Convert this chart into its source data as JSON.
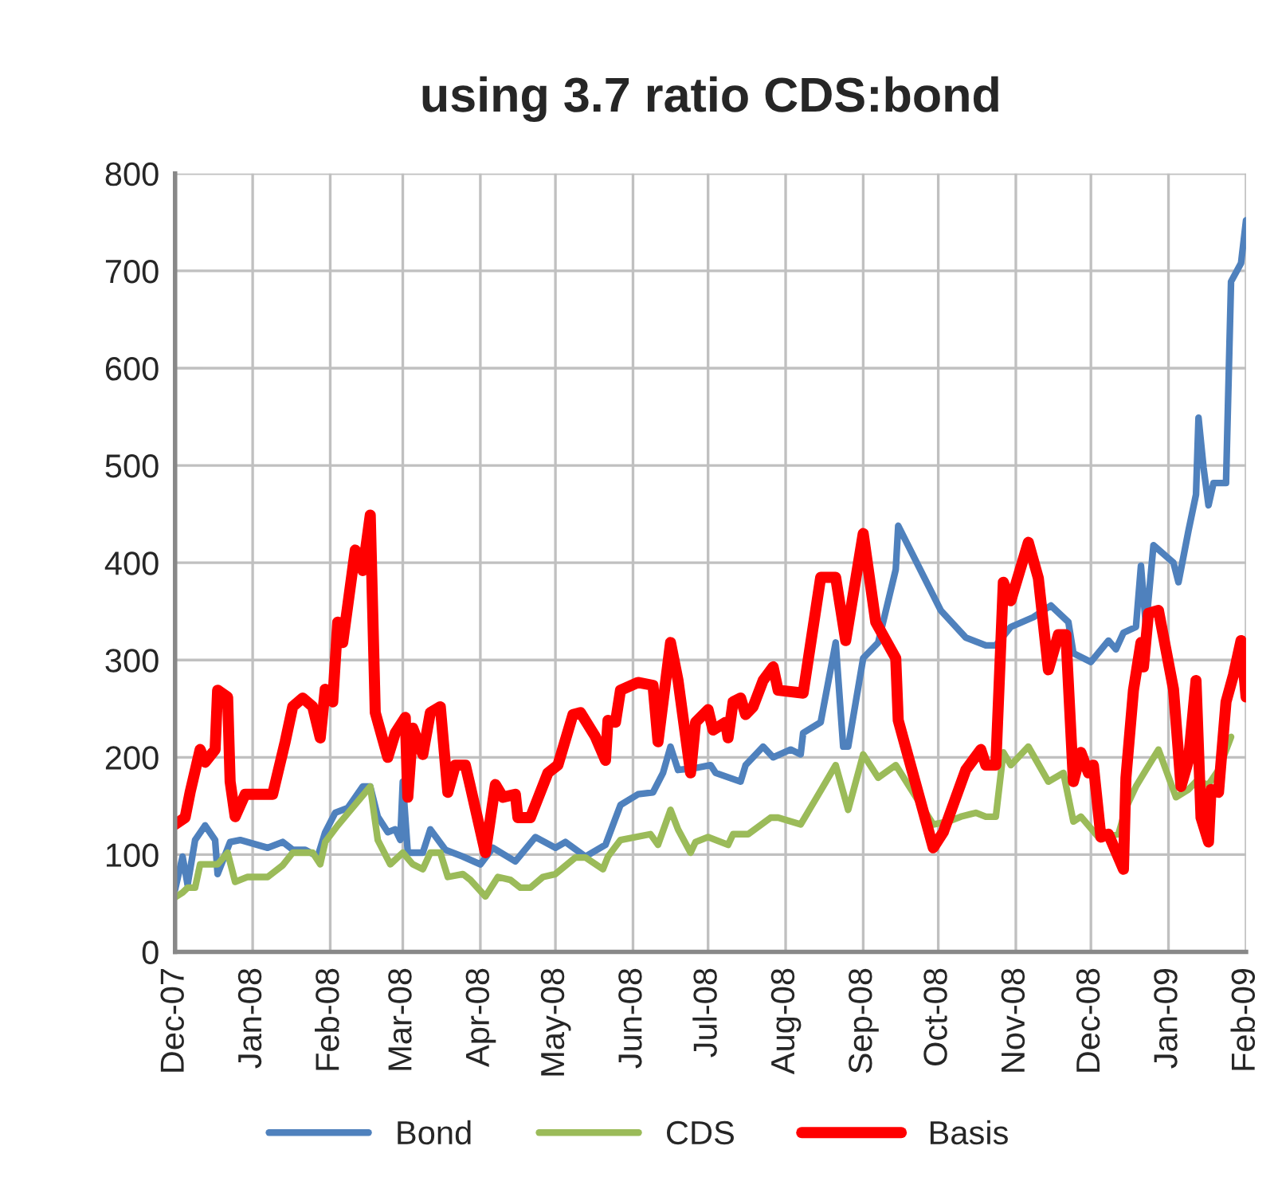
{
  "chart_data": {
    "type": "line",
    "title": "using 3.7 ratio CDS:bond",
    "series": [
      {
        "name": "Bond",
        "color": "#4f81bd",
        "x": [
          "2007-12-01",
          "2007-12-04",
          "2007-12-06",
          "2007-12-09",
          "2007-12-13",
          "2007-12-17",
          "2007-12-18",
          "2007-12-23",
          "2007-12-27",
          "2008-01-07",
          "2008-01-13",
          "2008-01-17",
          "2008-01-22",
          "2008-01-27",
          "2008-01-30",
          "2008-02-03",
          "2008-02-08",
          "2008-02-14",
          "2008-02-17",
          "2008-02-20",
          "2008-02-24",
          "2008-02-27",
          "2008-02-29",
          "2008-03-01",
          "2008-03-03",
          "2008-03-09",
          "2008-03-12",
          "2008-03-18",
          "2008-03-25",
          "2008-04-01",
          "2008-04-06",
          "2008-04-15",
          "2008-04-23",
          "2008-05-01",
          "2008-05-05",
          "2008-05-13",
          "2008-05-21",
          "2008-05-27",
          "2008-06-03",
          "2008-06-09",
          "2008-06-13",
          "2008-06-16",
          "2008-06-19",
          "2008-06-26",
          "2008-07-02",
          "2008-07-04",
          "2008-07-14",
          "2008-07-16",
          "2008-07-23",
          "2008-07-27",
          "2008-08-03",
          "2008-08-07",
          "2008-08-08",
          "2008-08-15",
          "2008-08-21",
          "2008-08-24",
          "2008-08-26",
          "2008-09-01",
          "2008-09-07",
          "2008-09-14",
          "2008-09-15",
          "2008-10-02",
          "2008-10-12",
          "2008-10-20",
          "2008-10-24",
          "2008-10-30",
          "2008-11-08",
          "2008-11-15",
          "2008-11-22",
          "2008-11-24",
          "2008-12-01",
          "2008-12-08",
          "2008-12-11",
          "2008-12-14",
          "2008-12-19",
          "2008-12-21",
          "2008-12-23",
          "2008-12-26",
          "2009-01-03",
          "2009-01-05",
          "2009-01-09",
          "2009-01-12",
          "2009-01-13",
          "2009-01-15",
          "2009-01-17",
          "2009-01-19",
          "2009-01-24",
          "2009-01-26",
          "2009-01-30",
          "2009-02-01"
        ],
        "values": [
          64,
          98,
          69,
          115,
          130,
          115,
          80,
          113,
          115,
          107,
          113,
          105,
          105,
          98,
          123,
          143,
          148,
          170,
          170,
          139,
          123,
          126,
          115,
          175,
          102,
          102,
          126,
          105,
          98,
          90,
          107,
          93,
          118,
          107,
          113,
          98,
          110,
          151,
          162,
          164,
          184,
          211,
          187,
          189,
          192,
          184,
          175,
          192,
          211,
          200,
          208,
          203,
          225,
          236,
          318,
          211,
          211,
          302,
          318,
          393,
          438,
          351,
          323,
          315,
          315,
          334,
          344,
          356,
          339,
          307,
          298,
          320,
          311,
          328,
          334,
          397,
          334,
          418,
          400,
          380,
          433,
          470,
          549,
          498,
          459,
          482,
          482,
          689,
          708,
          752
        ]
      },
      {
        "name": "CDS",
        "color": "#9bbb59",
        "x": [
          "2007-12-01",
          "2007-12-04",
          "2007-12-06",
          "2007-12-09",
          "2007-12-11",
          "2007-12-18",
          "2007-12-22",
          "2007-12-25",
          "2007-12-30",
          "2008-01-07",
          "2008-01-13",
          "2008-01-17",
          "2008-01-25",
          "2008-01-28",
          "2008-01-30",
          "2008-02-04",
          "2008-02-17",
          "2008-02-20",
          "2008-02-25",
          "2008-03-01",
          "2008-03-05",
          "2008-03-09",
          "2008-03-12",
          "2008-03-16",
          "2008-03-19",
          "2008-03-25",
          "2008-03-28",
          "2008-04-03",
          "2008-04-08",
          "2008-04-13",
          "2008-04-17",
          "2008-04-21",
          "2008-04-26",
          "2008-05-01",
          "2008-05-09",
          "2008-05-13",
          "2008-05-20",
          "2008-05-22",
          "2008-05-27",
          "2008-06-08",
          "2008-06-11",
          "2008-06-16",
          "2008-06-19",
          "2008-06-24",
          "2008-06-26",
          "2008-07-01",
          "2008-07-09",
          "2008-07-11",
          "2008-07-17",
          "2008-07-26",
          "2008-07-29",
          "2008-08-07",
          "2008-08-16",
          "2008-08-21",
          "2008-08-26",
          "2008-09-01",
          "2008-09-07",
          "2008-09-14",
          "2008-09-29",
          "2008-10-05",
          "2008-10-10",
          "2008-10-16",
          "2008-10-20",
          "2008-10-24",
          "2008-10-27",
          "2008-10-30",
          "2008-11-06",
          "2008-11-14",
          "2008-11-20",
          "2008-11-24",
          "2008-11-27",
          "2008-12-04",
          "2008-12-12",
          "2008-12-15",
          "2008-12-19",
          "2008-12-23",
          "2008-12-28",
          "2009-01-04",
          "2009-01-09",
          "2009-01-12",
          "2009-01-17",
          "2009-01-21",
          "2009-01-26"
        ],
        "values": [
          56,
          61,
          66,
          66,
          90,
          90,
          102,
          72,
          77,
          77,
          89,
          102,
          102,
          90,
          113,
          130,
          170,
          115,
          90,
          102,
          90,
          85,
          102,
          102,
          77,
          80,
          74,
          57,
          77,
          74,
          66,
          66,
          77,
          80,
          97,
          97,
          85,
          98,
          115,
          121,
          110,
          146,
          126,
          102,
          113,
          118,
          110,
          121,
          121,
          138,
          138,
          131,
          170,
          192,
          146,
          203,
          179,
          192,
          131,
          134,
          139,
          143,
          139,
          139,
          205,
          192,
          211,
          175,
          184,
          134,
          139,
          118,
          121,
          148,
          170,
          187,
          208,
          159,
          167,
          175,
          172,
          187,
          221
        ]
      },
      {
        "name": "Basis",
        "color": "#ff0000",
        "x": [
          "2007-12-01",
          "2007-12-05",
          "2007-12-07",
          "2007-12-11",
          "2007-12-13",
          "2007-12-17",
          "2007-12-18",
          "2007-12-22",
          "2007-12-23",
          "2007-12-25",
          "2007-12-29",
          "2008-01-09",
          "2008-01-14",
          "2008-01-17",
          "2008-01-21",
          "2008-01-25",
          "2008-01-28",
          "2008-01-30",
          "2008-02-02",
          "2008-02-04",
          "2008-02-06",
          "2008-02-11",
          "2008-02-14",
          "2008-02-17",
          "2008-02-19",
          "2008-02-24",
          "2008-02-27",
          "2008-03-02",
          "2008-03-03",
          "2008-03-05",
          "2008-03-09",
          "2008-03-12",
          "2008-03-16",
          "2008-03-19",
          "2008-03-22",
          "2008-03-26",
          "2008-03-28",
          "2008-04-03",
          "2008-04-07",
          "2008-04-10",
          "2008-04-15",
          "2008-04-16",
          "2008-04-21",
          "2008-04-28",
          "2008-05-02",
          "2008-05-08",
          "2008-05-11",
          "2008-05-17",
          "2008-05-21",
          "2008-05-22",
          "2008-05-25",
          "2008-05-27",
          "2008-06-03",
          "2008-06-09",
          "2008-06-11",
          "2008-06-16",
          "2008-06-19",
          "2008-06-24",
          "2008-06-26",
          "2008-07-01",
          "2008-07-03",
          "2008-07-08",
          "2008-07-09",
          "2008-07-11",
          "2008-07-14",
          "2008-07-16",
          "2008-07-19",
          "2008-07-23",
          "2008-07-27",
          "2008-07-29",
          "2008-08-08",
          "2008-08-15",
          "2008-08-21",
          "2008-08-25",
          "2008-09-01",
          "2008-09-06",
          "2008-09-14",
          "2008-09-15",
          "2008-09-29",
          "2008-10-03",
          "2008-10-12",
          "2008-10-18",
          "2008-10-20",
          "2008-10-24",
          "2008-10-27",
          "2008-10-30",
          "2008-11-06",
          "2008-11-10",
          "2008-11-14",
          "2008-11-18",
          "2008-11-21",
          "2008-11-24",
          "2008-11-27",
          "2008-11-30",
          "2008-12-02",
          "2008-12-05",
          "2008-12-08",
          "2008-12-14",
          "2008-12-15",
          "2008-12-18",
          "2008-12-21",
          "2008-12-22",
          "2008-12-24",
          "2008-12-28",
          "2009-01-03",
          "2009-01-06",
          "2009-01-09",
          "2009-01-12",
          "2009-01-14",
          "2009-01-17",
          "2009-01-18",
          "2009-01-21",
          "2009-01-24",
          "2009-01-27",
          "2009-01-30",
          "2009-02-01"
        ],
        "values": [
          131,
          138,
          164,
          208,
          195,
          208,
          269,
          262,
          175,
          139,
          162,
          162,
          216,
          252,
          261,
          252,
          220,
          270,
          257,
          339,
          318,
          413,
          392,
          449,
          246,
          200,
          225,
          241,
          159,
          230,
          203,
          246,
          252,
          164,
          192,
          192,
          170,
          102,
          172,
          159,
          162,
          138,
          138,
          184,
          192,
          244,
          246,
          221,
          197,
          238,
          236,
          269,
          277,
          274,
          216,
          318,
          279,
          184,
          236,
          249,
          228,
          236,
          220,
          257,
          261,
          244,
          252,
          279,
          293,
          269,
          266,
          385,
          385,
          320,
          430,
          339,
          302,
          238,
          107,
          123,
          187,
          208,
          192,
          192,
          380,
          361,
          421,
          384,
          290,
          326,
          326,
          175,
          205,
          184,
          192,
          118,
          121,
          85,
          179,
          269,
          318,
          293,
          348,
          351,
          270,
          170,
          197,
          279,
          138,
          113,
          167,
          164,
          257,
          285,
          320,
          262
        ]
      }
    ],
    "xlim": [
      "2007-12-01",
      "2009-02-01"
    ],
    "xticks": [
      {
        "value": "2007-12-01",
        "label": "Dec-07"
      },
      {
        "value": "2008-01-01",
        "label": "Jan-08"
      },
      {
        "value": "2008-02-01",
        "label": "Feb-08"
      },
      {
        "value": "2008-03-01",
        "label": "Mar-08"
      },
      {
        "value": "2008-04-01",
        "label": "Apr-08"
      },
      {
        "value": "2008-05-01",
        "label": "May-08"
      },
      {
        "value": "2008-06-01",
        "label": "Jun-08"
      },
      {
        "value": "2008-07-01",
        "label": "Jul-08"
      },
      {
        "value": "2008-08-01",
        "label": "Aug-08"
      },
      {
        "value": "2008-09-01",
        "label": "Sep-08"
      },
      {
        "value": "2008-10-01",
        "label": "Oct-08"
      },
      {
        "value": "2008-11-01",
        "label": "Nov-08"
      },
      {
        "value": "2008-12-01",
        "label": "Dec-08"
      },
      {
        "value": "2009-01-01",
        "label": "Jan-09"
      },
      {
        "value": "2009-02-01",
        "label": "Feb-09"
      }
    ],
    "ylim": [
      0,
      800
    ],
    "yticks": [
      0,
      100,
      200,
      300,
      400,
      500,
      600,
      700,
      800
    ],
    "grid": true,
    "legend": "bottom"
  }
}
